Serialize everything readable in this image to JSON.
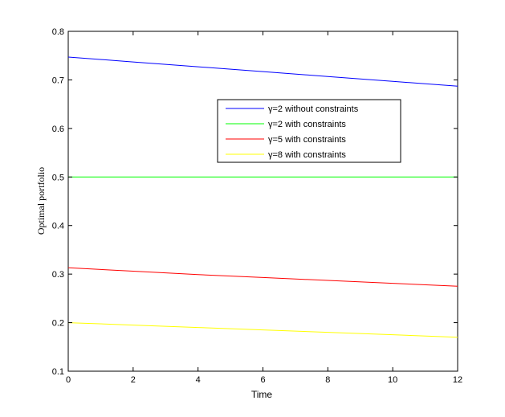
{
  "chart_data": {
    "type": "line",
    "title": "",
    "xlabel": "Time",
    "ylabel": "Optimal portfolio",
    "xlim": [
      0,
      12
    ],
    "ylim": [
      0.1,
      0.8
    ],
    "xticks": [
      0,
      2,
      4,
      6,
      8,
      10,
      12
    ],
    "xtick_labels": [
      "0",
      "2",
      "4",
      "6",
      "8",
      "10",
      "12"
    ],
    "yticks": [
      0.1,
      0.2,
      0.3,
      0.4,
      0.5,
      0.6,
      0.7,
      0.8
    ],
    "ytick_labels": [
      "0.1",
      "0.2",
      "0.3",
      "0.4",
      "0.5",
      "0.6",
      "0.7",
      "0.8"
    ],
    "grid": false,
    "legend_position": "upper-right-center",
    "series": [
      {
        "name": "γ=2 without constraints",
        "color": "#0000ff",
        "x": [
          0,
          2,
          4,
          6,
          8,
          10,
          12
        ],
        "y": [
          0.747,
          0.737,
          0.727,
          0.717,
          0.707,
          0.697,
          0.687
        ]
      },
      {
        "name": "γ=2 with constraints",
        "color": "#00ff00",
        "x": [
          0,
          2,
          4,
          6,
          8,
          10,
          12
        ],
        "y": [
          0.5,
          0.5,
          0.5,
          0.5,
          0.5,
          0.5,
          0.5
        ]
      },
      {
        "name": "γ=5 with constraints",
        "color": "#ff0000",
        "x": [
          0,
          2,
          4,
          6,
          8,
          10,
          12
        ],
        "y": [
          0.313,
          0.306,
          0.299,
          0.293,
          0.287,
          0.281,
          0.275
        ]
      },
      {
        "name": "γ=8 with constraints",
        "color": "#ffff00",
        "x": [
          0,
          2,
          4,
          6,
          8,
          10,
          12
        ],
        "y": [
          0.2,
          0.195,
          0.19,
          0.185,
          0.18,
          0.175,
          0.17
        ]
      }
    ]
  }
}
